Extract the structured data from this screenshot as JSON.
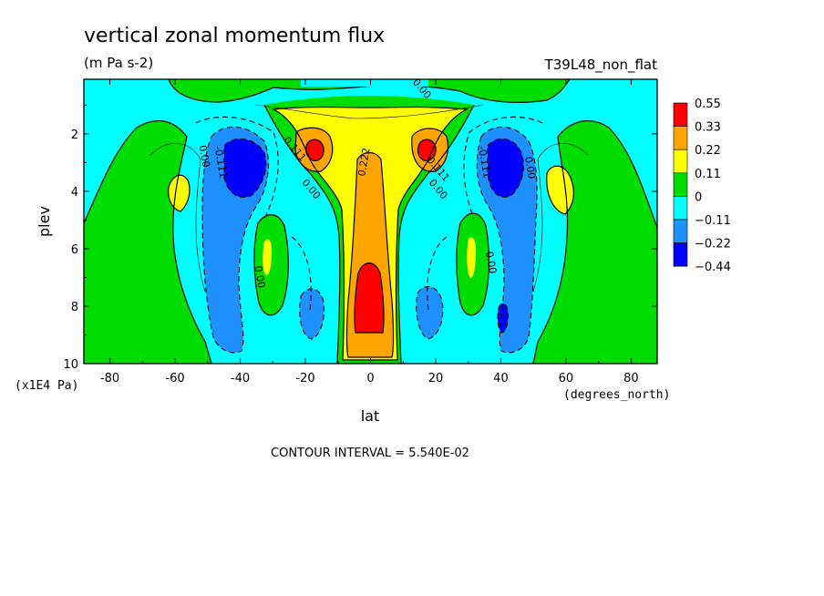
{
  "chart_data": {
    "type": "heatmap",
    "title": "vertical zonal momentum flux",
    "units": "(m Pa s-2)",
    "run_label": "T39L48_non_flat",
    "xlabel": "lat",
    "x_units": "(degrees_north)",
    "ylabel": "plev",
    "y_units": "(x1E4 Pa)",
    "xlim": [
      -88,
      88
    ],
    "ylim": [
      10,
      0.1
    ],
    "x_ticks": [
      -80,
      -60,
      -40,
      -20,
      0,
      20,
      40,
      60,
      80
    ],
    "x_tick_labels": [
      "-80",
      "-60",
      "-40",
      "-20",
      "0",
      "20",
      "40",
      "60",
      "80"
    ],
    "y_ticks": [
      2,
      4,
      6,
      8,
      10
    ],
    "y_tick_labels": [
      "2",
      "4",
      "6",
      "8",
      "10"
    ],
    "contour_interval_text": "CONTOUR INTERVAL = 5.540E-02",
    "levels": [
      0.55,
      0.33,
      0.22,
      0.11,
      0,
      -0.11,
      -0.22,
      -0.44
    ],
    "level_labels": [
      "0.55",
      "0.33",
      "0.22",
      "0.11",
      "0",
      "−0.11",
      "−0.22",
      "−0.44"
    ],
    "level_colors": [
      "#ff0000",
      "#ffa500",
      "#ffff00",
      "#00dd00",
      "#00ffff",
      "#1e90ff",
      "#0000ff"
    ],
    "contour_labels": [
      {
        "text": "0.00",
        "lat": 15,
        "plev": 0.5
      },
      {
        "text": "0.222",
        "lat": -1,
        "plev": 3.0
      },
      {
        "text": "0.111",
        "lat": -24,
        "plev": 2.6
      },
      {
        "text": "0.111",
        "lat": 20,
        "plev": 3.3
      },
      {
        "text": "0.00",
        "lat": -19,
        "plev": 4.0
      },
      {
        "text": "0.00",
        "lat": 20,
        "plev": 4.0
      },
      {
        "text": "0.00",
        "lat": -52,
        "plev": 2.8
      },
      {
        "text": "-0.111",
        "lat": -47,
        "plev": 3.0
      },
      {
        "text": "-0.111",
        "lat": 34,
        "plev": 3.0
      },
      {
        "text": "0.00",
        "lat": 48,
        "plev": 3.2
      },
      {
        "text": "0.00",
        "lat": -35,
        "plev": 7.0
      },
      {
        "text": "0.00",
        "lat": 36,
        "plev": 6.5
      }
    ]
  }
}
